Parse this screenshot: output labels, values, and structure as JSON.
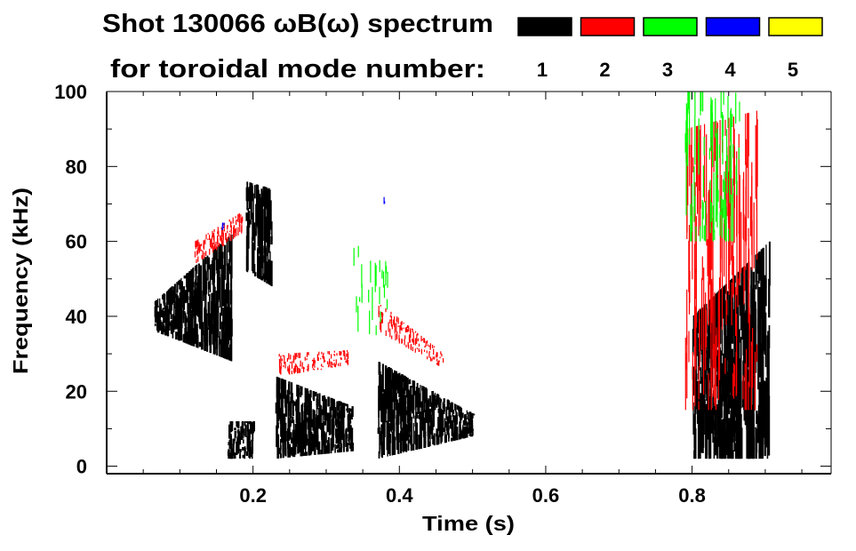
{
  "chart_data": {
    "type": "heatmap",
    "title": "Shot 130066 ωB(ω) spectrum",
    "subtitle": "for toroidal mode number:",
    "xlabel": "Time (s)",
    "ylabel": "Frequency (kHz)",
    "xlim": [
      0,
      0.99
    ],
    "ylim": [
      -2,
      100
    ],
    "xticks": [
      0.2,
      0.4,
      0.6,
      0.8
    ],
    "xtick_labels": [
      "0.2",
      "0.4",
      "0.6",
      "0.8"
    ],
    "yticks": [
      0,
      20,
      40,
      60,
      80,
      100
    ],
    "ytick_labels": [
      "0",
      "20",
      "40",
      "60",
      "80",
      "100"
    ],
    "grid": false,
    "legend": {
      "placement": "top-right",
      "entries": [
        {
          "label": "1",
          "color": "#000000"
        },
        {
          "label": "2",
          "color": "#ff0000"
        },
        {
          "label": "3",
          "color": "#00ff00"
        },
        {
          "label": "4",
          "color": "#0000ff"
        },
        {
          "label": "5",
          "color": "#ffff00"
        }
      ]
    },
    "regions": [
      {
        "mode": 1,
        "t": [
          0.065,
          0.17
        ],
        "f_start": [
          36,
          44
        ],
        "f_end": [
          28,
          62
        ],
        "density": 140
      },
      {
        "mode": 1,
        "t": [
          0.165,
          0.2
        ],
        "f_start": [
          2,
          12
        ],
        "f_end": [
          2,
          12
        ],
        "density": 40
      },
      {
        "mode": 1,
        "t": [
          0.19,
          0.225
        ],
        "f_start": [
          52,
          76
        ],
        "f_end": [
          48,
          74
        ],
        "density": 45
      },
      {
        "mode": 1,
        "t": [
          0.23,
          0.335
        ],
        "f_start": [
          2,
          24
        ],
        "f_end": [
          4,
          16
        ],
        "density": 130
      },
      {
        "mode": 1,
        "t": [
          0.37,
          0.5
        ],
        "f_start": [
          2,
          28
        ],
        "f_end": [
          8,
          14
        ],
        "density": 160
      },
      {
        "mode": 1,
        "t": [
          0.8,
          0.905
        ],
        "f_start": [
          2,
          40
        ],
        "f_end": [
          2,
          60
        ],
        "density": 150
      },
      {
        "mode": 2,
        "t": [
          0.12,
          0.185
        ],
        "f_start": [
          54,
          60
        ],
        "f_end": [
          62,
          68
        ],
        "density": 40
      },
      {
        "mode": 2,
        "t": [
          0.235,
          0.33
        ],
        "f_start": [
          24,
          30
        ],
        "f_end": [
          27,
          31
        ],
        "density": 45
      },
      {
        "mode": 2,
        "t": [
          0.37,
          0.46
        ],
        "f_start": [
          36,
          44
        ],
        "f_end": [
          26,
          30
        ],
        "density": 40
      },
      {
        "mode": 2,
        "t": [
          0.79,
          0.89
        ],
        "f_start": [
          15,
          90
        ],
        "f_end": [
          15,
          95
        ],
        "density": 55
      },
      {
        "mode": 3,
        "t": [
          0.79,
          0.865
        ],
        "f_start": [
          60,
          100
        ],
        "f_end": [
          60,
          100
        ],
        "density": 30
      },
      {
        "mode": 3,
        "t": [
          0.33,
          0.385
        ],
        "f_start": [
          35,
          60
        ],
        "f_end": [
          35,
          55
        ],
        "density": 8
      },
      {
        "mode": 4,
        "t": [
          0.155,
          0.16
        ],
        "f_start": [
          63,
          65
        ],
        "f_end": [
          63,
          65
        ],
        "density": 2
      },
      {
        "mode": 4,
        "t": [
          0.378,
          0.38
        ],
        "f_start": [
          70,
          74
        ],
        "f_end": [
          70,
          74
        ],
        "density": 1
      }
    ]
  }
}
